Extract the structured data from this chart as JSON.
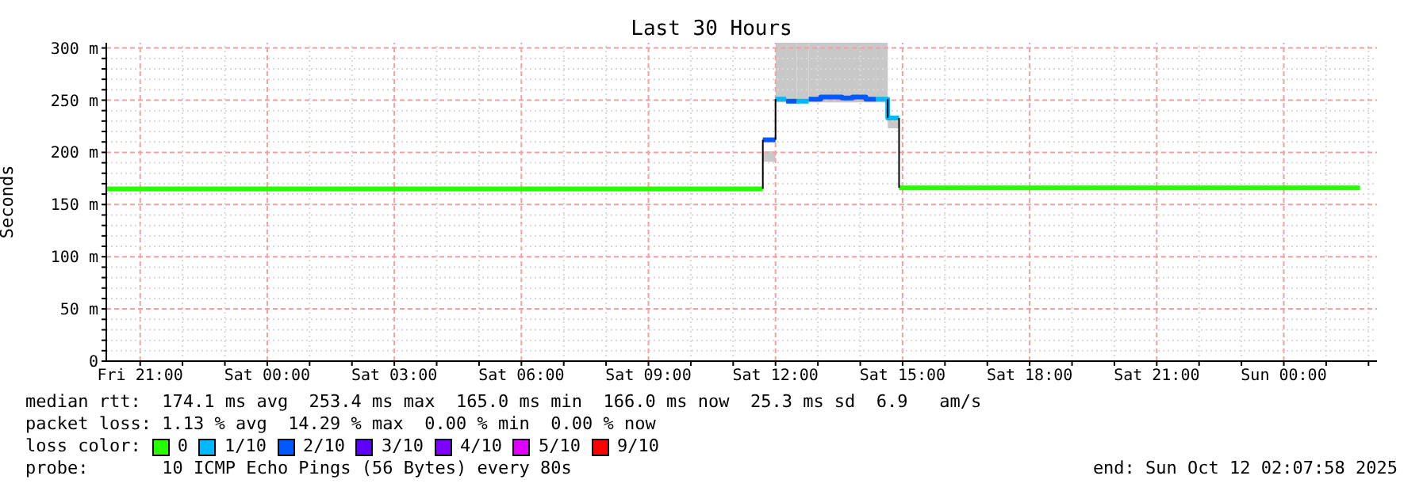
{
  "chart_data": {
    "type": "step",
    "title": "Last 30 Hours",
    "ylabel": "Seconds",
    "legend_title": "loss color:",
    "legend": "bottom",
    "grid": true,
    "xlim": [
      "2025-10-10T20:12",
      "2025-10-12T02:12"
    ],
    "xticks": [
      {
        "value": "2025-10-10T21:00",
        "label": "Fri 21:00"
      },
      {
        "value": "2025-10-10T22:00",
        "label": null
      },
      {
        "value": "2025-10-10T23:00",
        "label": null
      },
      {
        "value": "2025-10-11T00:00",
        "label": "Sat 00:00"
      },
      {
        "value": "2025-10-11T01:00",
        "label": null
      },
      {
        "value": "2025-10-11T02:00",
        "label": null
      },
      {
        "value": "2025-10-11T03:00",
        "label": "Sat 03:00"
      },
      {
        "value": "2025-10-11T04:00",
        "label": null
      },
      {
        "value": "2025-10-11T05:00",
        "label": null
      },
      {
        "value": "2025-10-11T06:00",
        "label": "Sat 06:00"
      },
      {
        "value": "2025-10-11T07:00",
        "label": null
      },
      {
        "value": "2025-10-11T08:00",
        "label": null
      },
      {
        "value": "2025-10-11T09:00",
        "label": "Sat 09:00"
      },
      {
        "value": "2025-10-11T10:00",
        "label": null
      },
      {
        "value": "2025-10-11T11:00",
        "label": null
      },
      {
        "value": "2025-10-11T12:00",
        "label": "Sat 12:00"
      },
      {
        "value": "2025-10-11T13:00",
        "label": null
      },
      {
        "value": "2025-10-11T14:00",
        "label": null
      },
      {
        "value": "2025-10-11T15:00",
        "label": "Sat 15:00"
      },
      {
        "value": "2025-10-11T16:00",
        "label": null
      },
      {
        "value": "2025-10-11T17:00",
        "label": null
      },
      {
        "value": "2025-10-11T18:00",
        "label": "Sat 18:00"
      },
      {
        "value": "2025-10-11T19:00",
        "label": null
      },
      {
        "value": "2025-10-11T20:00",
        "label": null
      },
      {
        "value": "2025-10-11T21:00",
        "label": "Sat 21:00"
      },
      {
        "value": "2025-10-11T22:00",
        "label": null
      },
      {
        "value": "2025-10-11T23:00",
        "label": null
      },
      {
        "value": "2025-10-12T00:00",
        "label": "Sun 00:00"
      },
      {
        "value": "2025-10-12T01:00",
        "label": null
      },
      {
        "value": "2025-10-12T02:00",
        "label": null
      }
    ],
    "ylim": [
      0,
      305
    ],
    "yticks": [
      {
        "value": 0,
        "label": "0"
      },
      {
        "value": 10,
        "label": null
      },
      {
        "value": 20,
        "label": null
      },
      {
        "value": 30,
        "label": null
      },
      {
        "value": 40,
        "label": null
      },
      {
        "value": 50,
        "label": "50 m"
      },
      {
        "value": 60,
        "label": null
      },
      {
        "value": 70,
        "label": null
      },
      {
        "value": 80,
        "label": null
      },
      {
        "value": 90,
        "label": null
      },
      {
        "value": 100,
        "label": "100 m"
      },
      {
        "value": 110,
        "label": null
      },
      {
        "value": 120,
        "label": null
      },
      {
        "value": 130,
        "label": null
      },
      {
        "value": 140,
        "label": null
      },
      {
        "value": 150,
        "label": "150 m"
      },
      {
        "value": 160,
        "label": null
      },
      {
        "value": 170,
        "label": null
      },
      {
        "value": 180,
        "label": null
      },
      {
        "value": 190,
        "label": null
      },
      {
        "value": 200,
        "label": "200 m"
      },
      {
        "value": 210,
        "label": null
      },
      {
        "value": 220,
        "label": null
      },
      {
        "value": 230,
        "label": null
      },
      {
        "value": 240,
        "label": null
      },
      {
        "value": 250,
        "label": "250 m"
      },
      {
        "value": 260,
        "label": null
      },
      {
        "value": 270,
        "label": null
      },
      {
        "value": 280,
        "label": null
      },
      {
        "value": 290,
        "label": null
      },
      {
        "value": 300,
        "label": "300 m"
      }
    ],
    "series": [
      {
        "name": "0",
        "color": "#26ff00",
        "x": [
          "2025-10-10T20:12",
          "2025-10-11T11:42"
        ],
        "values": [
          165,
          165
        ]
      },
      {
        "color": "#26ff00",
        "x": [
          "2025-10-11T14:55",
          "2025-10-12T01:48"
        ],
        "values": [
          166,
          166
        ]
      },
      {
        "name": "1/10",
        "color": "#00b8ff",
        "x": [
          "2025-10-11T12:00",
          "2025-10-11T12:15"
        ],
        "values": [
          251,
          251
        ],
        "lower": [
          248,
          248
        ],
        "upper": [
          305,
          305
        ]
      },
      {
        "color": "#00b8ff",
        "x": [
          "2025-10-11T12:30",
          "2025-10-11T12:47"
        ],
        "values": [
          249,
          249
        ],
        "lower": [
          248,
          248
        ],
        "upper": [
          305,
          305
        ]
      },
      {
        "color": "#00b8ff",
        "x": [
          "2025-10-11T14:22",
          "2025-10-11T14:39",
          "2025-10-11T14:55"
        ],
        "values": [
          251,
          233,
          233
        ],
        "lower": [
          248,
          223,
          223
        ],
        "upper": [
          305,
          233,
          233
        ]
      },
      {
        "name": "2/10",
        "color": "#0059ff",
        "x": [
          "2025-10-11T11:42",
          "2025-10-11T12:00"
        ],
        "values": [
          212,
          212
        ],
        "lower": [
          191,
          191
        ],
        "upper": [
          201,
          201
        ]
      },
      {
        "color": "#0059ff",
        "x": [
          "2025-10-11T12:15",
          "2025-10-11T12:30"
        ],
        "values": [
          249,
          249
        ],
        "lower": [
          248,
          248
        ],
        "upper": [
          305,
          305
        ]
      },
      {
        "color": "#0059ff",
        "x": [
          "2025-10-11T12:47",
          "2025-10-11T13:04",
          "2025-10-11T13:34",
          "2025-10-11T13:49",
          "2025-10-11T14:08",
          "2025-10-11T14:22"
        ],
        "values": [
          251,
          253,
          252,
          253,
          251,
          251
        ],
        "lower": [
          248,
          248,
          248,
          248,
          248,
          248
        ],
        "upper": [
          305,
          305,
          305,
          305,
          305,
          305
        ]
      },
      {
        "name": "3/10",
        "color": "#5e00ff"
      },
      {
        "name": "4/10",
        "color": "#7e00ff"
      },
      {
        "name": "5/10",
        "color": "#dd00ff"
      },
      {
        "name": "9/10",
        "color": "#ff0000"
      },
      {
        "type": "line",
        "color": "#000000",
        "x": [
          "2025-10-11T11:42",
          "2025-10-11T11:42"
        ],
        "values": [
          165,
          212
        ]
      },
      {
        "type": "line",
        "color": "#000000",
        "x": [
          "2025-10-11T12:00",
          "2025-10-11T12:00"
        ],
        "values": [
          212,
          251
        ]
      },
      {
        "type": "line",
        "color": "#000000",
        "x": [
          "2025-10-11T14:39",
          "2025-10-11T14:39"
        ],
        "values": [
          251,
          233
        ]
      },
      {
        "type": "line",
        "color": "#000000",
        "x": [
          "2025-10-11T14:55",
          "2025-10-11T14:55"
        ],
        "values": [
          233,
          166
        ]
      }
    ],
    "annotations": [
      "median rtt:  174.1 ms avg  253.4 ms max  165.0 ms min  166.0 ms now  25.3 ms sd  6.9   am/s",
      "packet loss: 1.13 % avg  14.29 % max  0.00 % min  0.00 % now",
      "probe:       10 ICMP Echo Pings (56 Bytes) every 80s",
      "end: Sun Oct 12 02:07:58 2025"
    ]
  }
}
